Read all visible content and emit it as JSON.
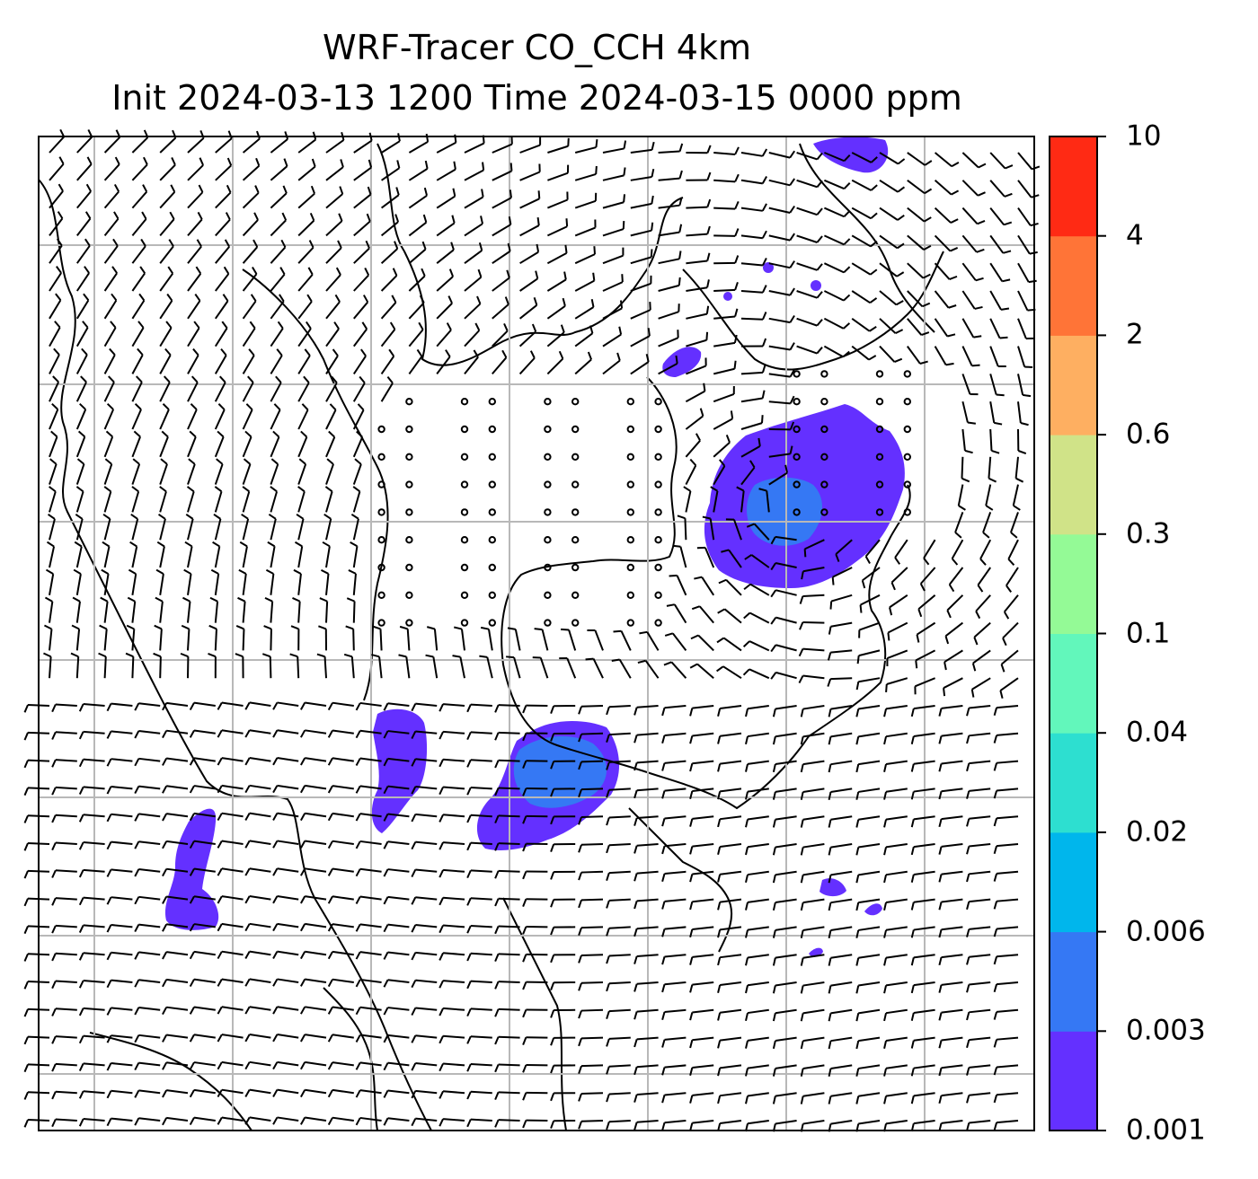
{
  "title_line1": "WRF-Tracer CO_CCH 4km",
  "title_line2": "Init 2024-03-13 1200 Time 2024-03-15 0000 ppm",
  "colorbar": {
    "levels": [
      "0.001",
      "0.003",
      "0.006",
      "0.02",
      "0.04",
      "0.1",
      "0.3",
      "0.6",
      "2",
      "4",
      "10"
    ],
    "colors": [
      "#6430ff",
      "#3578f4",
      "#00b6ec",
      "#2ddfd0",
      "#62f7bb",
      "#94fa96",
      "#d0e388",
      "#feaf61",
      "#ff7437",
      "#ff2a14"
    ]
  },
  "plume_colors": {
    "outer": "#6430ff",
    "inner": "#3578f4"
  }
}
